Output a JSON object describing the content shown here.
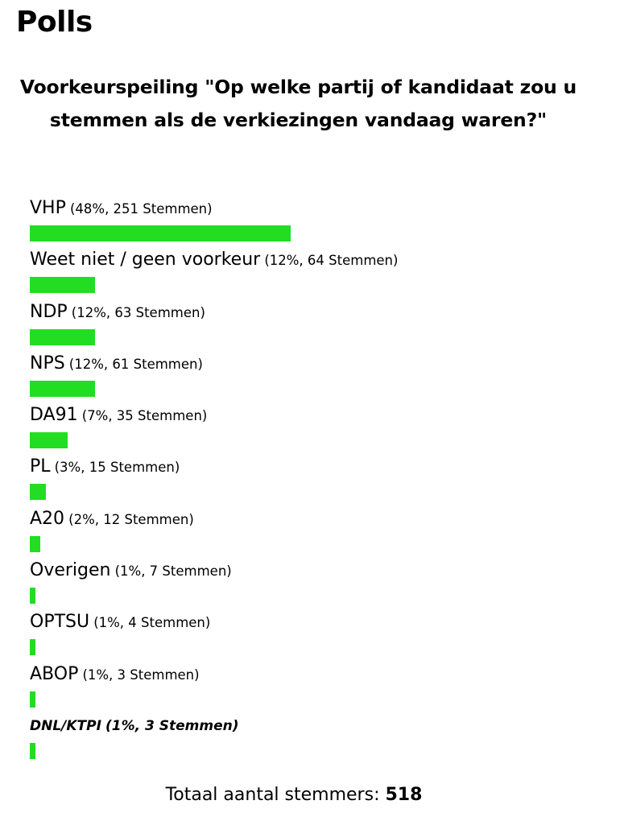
{
  "heading": "Polls",
  "question": "Voorkeurspeiling \"Op welke partij of kandidaat zou u stemmen als de verkiezingen vandaag waren?\"",
  "accent_color": "#22dd22",
  "answers": [
    {
      "name": "VHP",
      "result": "(48%, 251 Stemmen)",
      "percent": 48
    },
    {
      "name": "Weet niet / geen voorkeur",
      "result": "(12%, 64 Stemmen)",
      "percent": 12
    },
    {
      "name": "NDP",
      "result": "(12%, 63 Stemmen)",
      "percent": 12
    },
    {
      "name": "NPS",
      "result": "(12%, 61 Stemmen)",
      "percent": 12
    },
    {
      "name": "DA91",
      "result": "(7%, 35 Stemmen)",
      "percent": 7
    },
    {
      "name": "PL",
      "result": "(3%, 15 Stemmen)",
      "percent": 3
    },
    {
      "name": "A20",
      "result": "(2%, 12 Stemmen)",
      "percent": 2
    },
    {
      "name": "Overigen",
      "result": "(1%, 7 Stemmen)",
      "percent": 1
    },
    {
      "name": "OPTSU",
      "result": "(1%, 4 Stemmen)",
      "percent": 1
    },
    {
      "name": "ABOP",
      "result": "(1%, 3 Stemmen)",
      "percent": 1
    },
    {
      "name": "DNL/KTPI",
      "result": "(1%, 3 Stemmen)",
      "percent": 1,
      "highlight": true
    }
  ],
  "total": {
    "label": "Totaal aantal stemmers:",
    "count": "518"
  }
}
